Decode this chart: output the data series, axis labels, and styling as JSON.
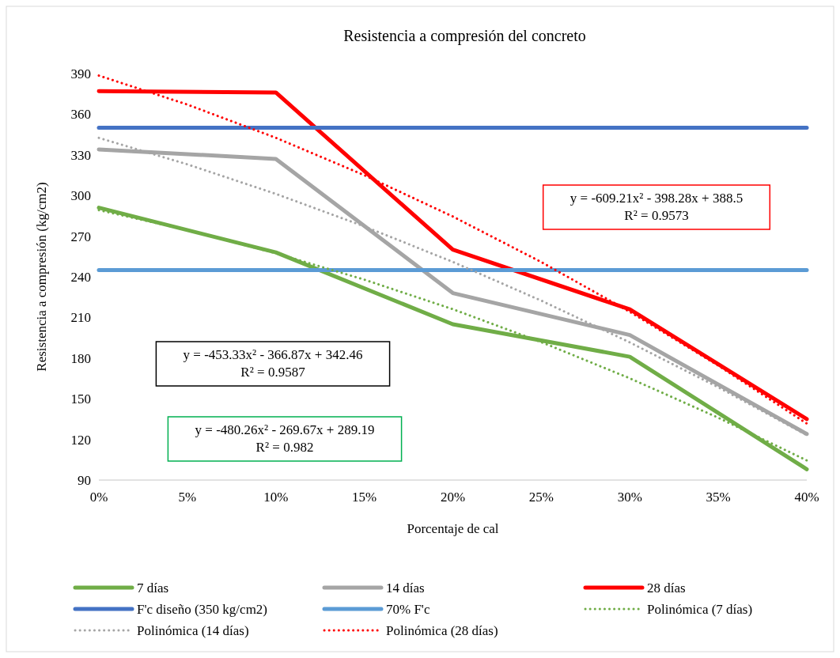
{
  "chart_data": {
    "type": "line",
    "title": "Resistencia a compresión del concreto",
    "xlabel": "Porcentaje de cal",
    "ylabel": "Resistencia a compresión (kg/cm2)",
    "x": [
      0,
      0.1,
      0.2,
      0.3,
      0.4
    ],
    "xlim": [
      0,
      0.4
    ],
    "xticks": [
      {
        "value": 0,
        "label": "0%"
      },
      {
        "value": 0.05,
        "label": "5%"
      },
      {
        "value": 0.1,
        "label": "10%"
      },
      {
        "value": 0.15,
        "label": "15%"
      },
      {
        "value": 0.2,
        "label": "20%"
      },
      {
        "value": 0.25,
        "label": "25%"
      },
      {
        "value": 0.3,
        "label": "30%"
      },
      {
        "value": 0.35,
        "label": "35%"
      },
      {
        "value": 0.4,
        "label": "40%"
      }
    ],
    "ylim": [
      90,
      390
    ],
    "yticks": [
      90,
      120,
      150,
      180,
      210,
      240,
      270,
      300,
      330,
      360,
      390
    ],
    "grid": false,
    "legend": "bottom",
    "marker": "none",
    "line_style": "solid",
    "series": [
      {
        "name": "7 días",
        "color": "#70ad47",
        "values": [
          291,
          258,
          205,
          181,
          98
        ]
      },
      {
        "name": "14 días",
        "color": "#a5a5a5",
        "values": [
          334,
          327,
          228,
          197,
          124
        ]
      },
      {
        "name": "28 días",
        "color": "#ff0000",
        "values": [
          377,
          376,
          260,
          216,
          135
        ]
      },
      {
        "name": "F'c diseño (350 kg/cm2)",
        "color": "#4472c4",
        "values": [
          350,
          350,
          350,
          350,
          350
        ]
      },
      {
        "name": "70% F'c",
        "color": "#5b9bd5",
        "values": [
          245,
          245,
          245,
          245,
          245
        ]
      },
      {
        "name": "Polinómica (7 días)",
        "color": "#70ad47",
        "line_style": "dotted",
        "x": [
          0,
          0.05,
          0.1,
          0.15,
          0.2,
          0.25,
          0.3,
          0.35,
          0.4
        ],
        "values": [
          289.2,
          274.5,
          257.4,
          237.9,
          216.1,
          191.8,
          165.1,
          136.0,
          104.5
        ]
      },
      {
        "name": "Polinómica (14 días)",
        "color": "#a5a5a5",
        "line_style": "dotted",
        "x": [
          0,
          0.05,
          0.1,
          0.15,
          0.2,
          0.25,
          0.3,
          0.35,
          0.4
        ],
        "values": [
          342.5,
          323.0,
          301.2,
          277.2,
          251.0,
          222.4,
          191.6,
          158.5,
          123.2
        ]
      },
      {
        "name": "Polinómica (28 días)",
        "color": "#ff0000",
        "line_style": "dotted",
        "x": [
          0,
          0.05,
          0.1,
          0.15,
          0.2,
          0.25,
          0.3,
          0.35,
          0.4
        ],
        "values": [
          388.5,
          367.1,
          342.6,
          315.0,
          284.5,
          250.9,
          214.2,
          174.5,
          131.7
        ]
      }
    ],
    "annotations": [
      "y = -609.21x² - 398.28x + 388.5\nR² = 0.9573",
      "y = -453.33x² - 366.87x + 342.46\nR² = 0.9587",
      "y = -480.26x² - 269.67x + 289.19\nR² = 0.982"
    ]
  }
}
